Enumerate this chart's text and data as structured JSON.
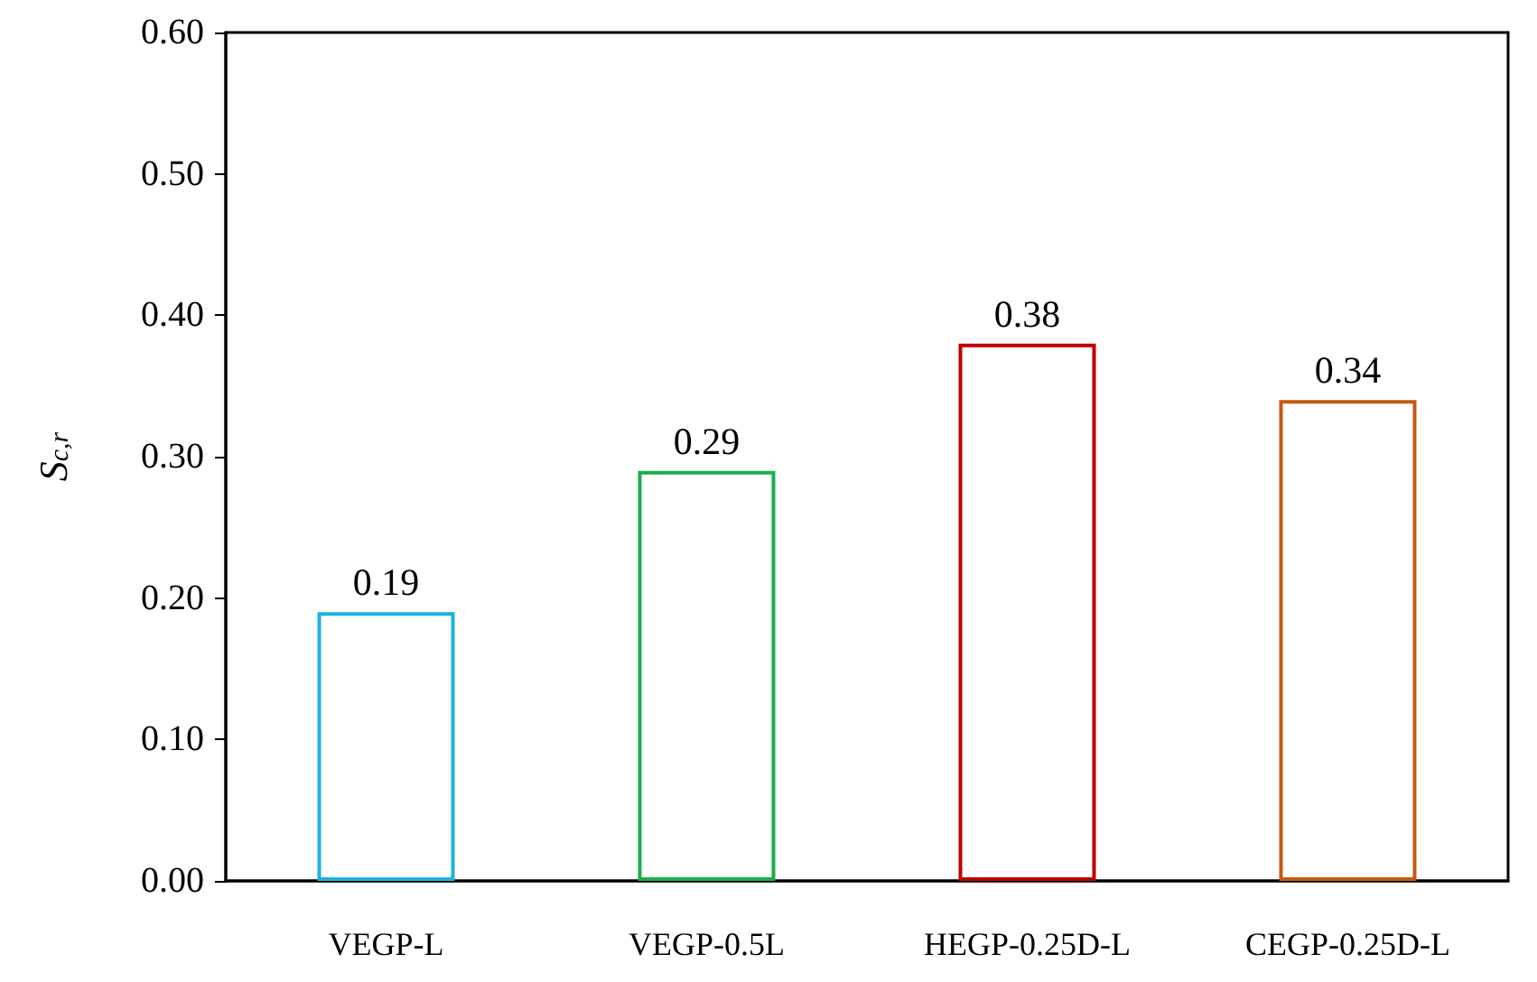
{
  "chart_data": {
    "type": "bar",
    "ylabel": "S$_{c,r}$",
    "categories": [
      "VEGP-L",
      "VEGP-0.5L",
      "HEGP-0.25D-L",
      "CEGP-0.25D-L"
    ],
    "values": [
      0.19,
      0.29,
      0.38,
      0.34
    ],
    "value_labels": [
      "0.19",
      "0.29",
      "0.38",
      "0.34"
    ],
    "colors": [
      "#1fb0e0",
      "#1aae4a",
      "#c00000",
      "#c55a11"
    ],
    "ylim": [
      0,
      0.6
    ],
    "yticks": [
      {
        "value": 0,
        "label": "0.00"
      },
      {
        "value": 0.1,
        "label": "0.10"
      },
      {
        "value": 0.2,
        "label": "0.20"
      },
      {
        "value": 0.3,
        "label": "0.30"
      },
      {
        "value": 0.4,
        "label": "0.40"
      },
      {
        "value": 0.5,
        "label": "0.50"
      },
      {
        "value": 0.6,
        "label": "0.60"
      }
    ],
    "grid": false
  }
}
